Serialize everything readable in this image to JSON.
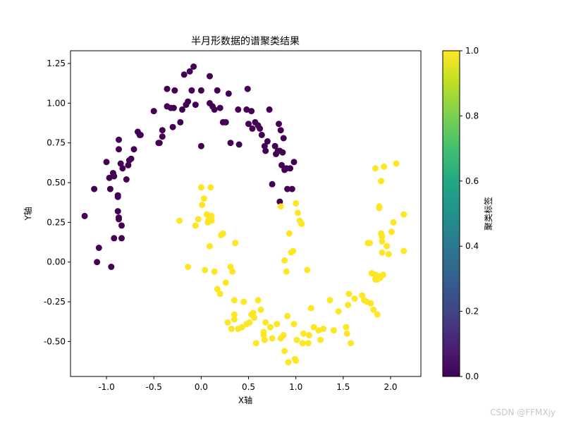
{
  "chart_data": {
    "type": "scatter",
    "title": "半月形数据的谱聚类结果",
    "xlabel": "X轴",
    "ylabel": "Y轴",
    "xlim": [
      -1.38,
      2.32
    ],
    "ylim": [
      -0.72,
      1.33
    ],
    "xticks": [
      -1.0,
      -0.5,
      0.0,
      0.5,
      1.0,
      1.5,
      2.0
    ],
    "xtick_labels": [
      "-1.0",
      "-0.5",
      "0.0",
      "0.5",
      "1.0",
      "1.5",
      "2.0"
    ],
    "yticks": [
      -0.5,
      -0.25,
      0.0,
      0.25,
      0.5,
      0.75,
      1.0,
      1.25
    ],
    "ytick_labels": [
      "-0.50",
      "-0.25",
      "0.00",
      "0.25",
      "0.50",
      "0.75",
      "1.00",
      "1.25"
    ],
    "grid": false,
    "colormap": "viridis",
    "colorbar": {
      "label": "聚类标签",
      "range": [
        0.0,
        1.0
      ],
      "ticks": [
        0.0,
        0.2,
        0.4,
        0.6,
        0.8,
        1.0
      ],
      "tick_labels": [
        "0.0",
        "0.2",
        "0.4",
        "0.6",
        "0.8",
        "1.0"
      ]
    },
    "series": [
      {
        "label_value": 0,
        "color": "#440154",
        "points": [
          [
            -1.23,
            0.29
          ],
          [
            -1.13,
            0.46
          ],
          [
            -1.08,
            0.09
          ],
          [
            -1.1,
            0.0
          ],
          [
            -0.95,
            -0.03
          ],
          [
            -0.96,
            0.46
          ],
          [
            -0.97,
            0.53
          ],
          [
            -1.0,
            0.63
          ],
          [
            -0.93,
            0.56
          ],
          [
            -0.92,
            0.54
          ],
          [
            -0.92,
            0.15
          ],
          [
            -0.88,
            0.41
          ],
          [
            -0.88,
            0.42
          ],
          [
            -0.88,
            0.32
          ],
          [
            -0.87,
            0.28
          ],
          [
            -0.87,
            0.27
          ],
          [
            -0.84,
            0.15
          ],
          [
            -0.84,
            0.23
          ],
          [
            -0.83,
            0.59
          ],
          [
            -0.85,
            0.62
          ],
          [
            -0.87,
            0.71
          ],
          [
            -0.87,
            0.77
          ],
          [
            -0.79,
            0.52
          ],
          [
            -0.76,
            0.64
          ],
          [
            -0.77,
            0.61
          ],
          [
            -0.74,
            0.65
          ],
          [
            -0.71,
            0.71
          ],
          [
            -0.67,
            0.82
          ],
          [
            -0.65,
            0.8
          ],
          [
            -0.64,
            0.8
          ],
          [
            -0.5,
            0.95
          ],
          [
            -0.45,
            0.75
          ],
          [
            -0.44,
            0.75
          ],
          [
            -0.41,
            0.79
          ],
          [
            -0.41,
            0.83
          ],
          [
            -0.36,
            0.98
          ],
          [
            -0.36,
            1.09
          ],
          [
            -0.32,
            0.97
          ],
          [
            -0.3,
            0.85
          ],
          [
            -0.29,
            0.97
          ],
          [
            -0.28,
            1.08
          ],
          [
            -0.22,
            0.88
          ],
          [
            -0.2,
            0.96
          ],
          [
            -0.18,
            1.18
          ],
          [
            -0.16,
            0.99
          ],
          [
            -0.14,
            1.01
          ],
          [
            -0.12,
            1.2
          ],
          [
            -0.1,
            1.08
          ],
          [
            -0.08,
            1.23
          ],
          [
            -0.06,
            0.99
          ],
          [
            0.0,
            1.08
          ],
          [
            0.0,
            0.73
          ],
          [
            0.09,
            1.0
          ],
          [
            0.09,
            1.17
          ],
          [
            0.12,
            0.98
          ],
          [
            0.14,
            0.96
          ],
          [
            0.17,
            1.08
          ],
          [
            0.2,
            0.97
          ],
          [
            0.23,
            0.88
          ],
          [
            0.26,
            0.88
          ],
          [
            0.29,
            1.06
          ],
          [
            0.31,
            0.75
          ],
          [
            0.39,
            0.96
          ],
          [
            0.4,
            0.74
          ],
          [
            0.48,
            0.96
          ],
          [
            0.49,
            1.09
          ],
          [
            0.5,
            0.87
          ],
          [
            0.54,
            0.84
          ],
          [
            0.57,
            0.88
          ],
          [
            0.6,
            0.86
          ],
          [
            0.62,
            0.84
          ],
          [
            0.64,
            0.8
          ],
          [
            0.67,
            0.73
          ],
          [
            0.68,
            0.7
          ],
          [
            0.7,
            0.76
          ],
          [
            0.72,
            0.96
          ],
          [
            0.75,
            0.49
          ],
          [
            0.78,
            0.73
          ],
          [
            0.79,
            0.68
          ],
          [
            0.81,
            0.7
          ],
          [
            0.82,
            0.87
          ],
          [
            0.83,
            0.7
          ],
          [
            0.84,
            0.83
          ],
          [
            0.85,
            0.61
          ],
          [
            0.86,
            0.69
          ],
          [
            0.87,
            0.78
          ],
          [
            0.88,
            0.58
          ],
          [
            0.9,
            0.59
          ],
          [
            0.91,
            0.46
          ],
          [
            0.94,
            0.59
          ],
          [
            0.96,
            0.46
          ],
          [
            0.98,
            0.63
          ],
          [
            0.83,
            0.38
          ],
          [
            0.53,
            0.95
          ]
        ]
      },
      {
        "label_value": 1,
        "color": "#fde725",
        "points": [
          [
            -0.23,
            0.26
          ],
          [
            -0.14,
            -0.03
          ],
          [
            -0.06,
            0.23
          ],
          [
            -0.03,
            0.27
          ],
          [
            0.0,
            0.47
          ],
          [
            0.01,
            0.36
          ],
          [
            0.03,
            0.4
          ],
          [
            0.04,
            -0.05
          ],
          [
            0.06,
            0.3
          ],
          [
            0.07,
            0.25
          ],
          [
            0.08,
            0.27
          ],
          [
            0.09,
            0.1
          ],
          [
            0.1,
            0.47
          ],
          [
            0.11,
            0.29
          ],
          [
            0.11,
            0.26
          ],
          [
            0.14,
            -0.06
          ],
          [
            0.17,
            -0.17
          ],
          [
            0.2,
            -0.2
          ],
          [
            0.21,
            0.17
          ],
          [
            0.23,
            0.18
          ],
          [
            0.26,
            -0.13
          ],
          [
            0.28,
            -0.38
          ],
          [
            0.31,
            -0.03
          ],
          [
            0.32,
            -0.42
          ],
          [
            0.33,
            -0.06
          ],
          [
            0.35,
            -0.24
          ],
          [
            0.35,
            -0.33
          ],
          [
            0.35,
            -0.36
          ],
          [
            0.36,
            0.12
          ],
          [
            0.39,
            -0.42
          ],
          [
            0.43,
            -0.41
          ],
          [
            0.45,
            -0.25
          ],
          [
            0.48,
            -0.39
          ],
          [
            0.51,
            -0.38
          ],
          [
            0.53,
            -0.33
          ],
          [
            0.55,
            -0.32
          ],
          [
            0.56,
            -0.35
          ],
          [
            0.58,
            -0.51
          ],
          [
            0.6,
            -0.24
          ],
          [
            0.63,
            -0.3
          ],
          [
            0.66,
            -0.44
          ],
          [
            0.66,
            -0.46
          ],
          [
            0.67,
            -0.49
          ],
          [
            0.68,
            -0.38
          ],
          [
            0.73,
            -0.41
          ],
          [
            0.75,
            -0.48
          ],
          [
            0.8,
            -0.39
          ],
          [
            0.84,
            -0.48
          ],
          [
            0.84,
            0.35
          ],
          [
            0.87,
            -0.46
          ],
          [
            0.88,
            0.01
          ],
          [
            0.88,
            -0.56
          ],
          [
            0.9,
            -0.06
          ],
          [
            0.91,
            -0.34
          ],
          [
            0.92,
            -0.63
          ],
          [
            0.93,
            0.18
          ],
          [
            0.95,
            0.06
          ],
          [
            0.97,
            0.07
          ],
          [
            0.98,
            -0.39
          ],
          [
            0.99,
            -0.61
          ],
          [
            1.0,
            -0.62
          ],
          [
            1.0,
            0.37
          ],
          [
            1.01,
            -0.49
          ],
          [
            1.02,
            0.31
          ],
          [
            1.04,
            0.26
          ],
          [
            1.06,
            0.24
          ],
          [
            1.07,
            -0.51
          ],
          [
            1.08,
            -0.45
          ],
          [
            1.12,
            -0.05
          ],
          [
            1.13,
            -0.51
          ],
          [
            1.14,
            -0.46
          ],
          [
            1.16,
            -0.29
          ],
          [
            1.19,
            -0.41
          ],
          [
            1.24,
            -0.43
          ],
          [
            1.26,
            -0.49
          ],
          [
            1.29,
            -0.42
          ],
          [
            1.36,
            -0.24
          ],
          [
            1.4,
            -0.43
          ],
          [
            1.45,
            -0.31
          ],
          [
            1.53,
            -0.41
          ],
          [
            1.54,
            -0.45
          ],
          [
            1.55,
            -0.27
          ],
          [
            1.56,
            -0.2
          ],
          [
            1.58,
            -0.51
          ],
          [
            1.62,
            -0.23
          ],
          [
            1.7,
            -0.21
          ],
          [
            1.72,
            -0.24
          ],
          [
            1.75,
            -0.25
          ],
          [
            1.76,
            0.12
          ],
          [
            1.78,
            0.12
          ],
          [
            1.79,
            -0.26
          ],
          [
            1.8,
            -0.07
          ],
          [
            1.82,
            -0.3
          ],
          [
            1.84,
            -0.08
          ],
          [
            1.84,
            0.59
          ],
          [
            1.84,
            -0.11
          ],
          [
            1.86,
            -0.33
          ],
          [
            1.86,
            -0.11
          ],
          [
            1.88,
            -0.09
          ],
          [
            1.89,
            -0.1
          ],
          [
            1.9,
            0.18
          ],
          [
            1.9,
            0.51
          ],
          [
            1.88,
            0.35
          ],
          [
            1.91,
            0.16
          ],
          [
            1.91,
            0.06
          ],
          [
            1.92,
            -0.08
          ],
          [
            1.93,
            0.6
          ],
          [
            1.96,
            0.1
          ],
          [
            1.98,
            0.05
          ],
          [
            2.01,
            0.19
          ],
          [
            2.03,
            0.25
          ],
          [
            2.06,
            0.62
          ],
          [
            2.14,
            0.07
          ],
          [
            2.14,
            0.3
          ],
          [
            1.91,
            0.13
          ],
          [
            1.88,
            0.34
          ]
        ]
      }
    ]
  },
  "watermark": "CSDN @FFMXjy"
}
